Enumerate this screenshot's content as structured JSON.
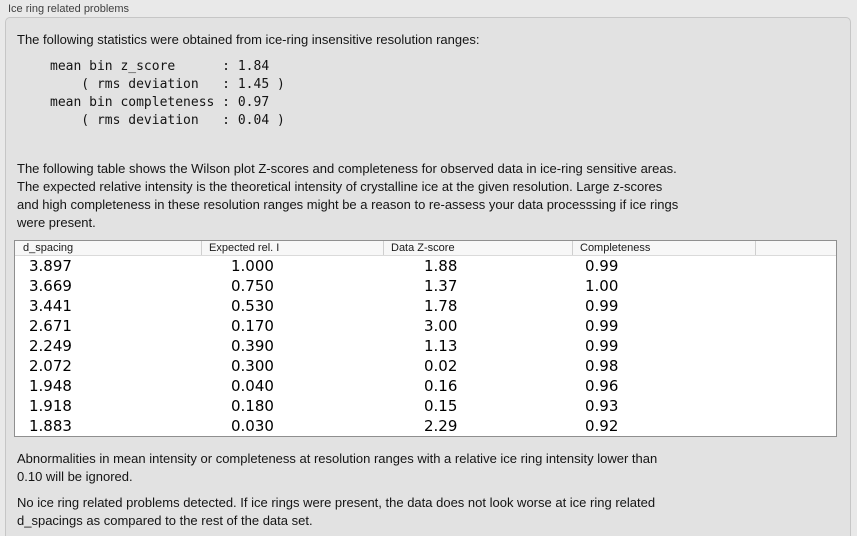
{
  "panel_title": "Ice ring related problems",
  "intro": "The following statistics were obtained from ice-ring insensitive resolution ranges:",
  "stats_text": "mean bin z_score      : 1.84\n    ( rms deviation   : 1.45 )\nmean bin completeness : 0.97\n    ( rms deviation   : 0.04 )",
  "stats": {
    "mean_bin_z_score": "1.84",
    "z_score_rms_deviation": "1.45",
    "mean_bin_completeness": "0.97",
    "completeness_rms_deviation": "0.04"
  },
  "description": "The following table shows the Wilson plot Z-scores and completeness for observed data in ice-ring sensitive areas.\nThe expected relative intensity is the theoretical intensity of crystalline ice at the given resolution. Large z-scores\nand high completeness in these resolution ranges might be a reason to re-assess your data processsing if ice rings\nwere present.",
  "table": {
    "headers": [
      "d_spacing",
      "Expected rel. I",
      "Data Z-score",
      "Completeness",
      ""
    ],
    "rows": [
      [
        "3.897",
        "1.000",
        "1.88",
        "0.99"
      ],
      [
        "3.669",
        "0.750",
        "1.37",
        "1.00"
      ],
      [
        "3.441",
        "0.530",
        "1.78",
        "0.99"
      ],
      [
        "2.671",
        "0.170",
        "3.00",
        "0.99"
      ],
      [
        "2.249",
        "0.390",
        "1.13",
        "0.99"
      ],
      [
        "2.072",
        "0.300",
        "0.02",
        "0.98"
      ],
      [
        "1.948",
        "0.040",
        "0.16",
        "0.96"
      ],
      [
        "1.918",
        "0.180",
        "0.15",
        "0.93"
      ],
      [
        "1.883",
        "0.030",
        "2.29",
        "0.92"
      ]
    ]
  },
  "ignore_note": "Abnormalities in mean intensity or completeness at resolution ranges with a relative ice ring intensity lower than\n0.10 will be ignored.",
  "conclusion": "No ice ring related problems detected. If ice rings were present, the data does not look worse at ice ring related\nd_spacings as compared to the rest of the data set.",
  "colors": {
    "page_bg": "#e9e9e9",
    "box_bg": "#e2e2e2",
    "box_border": "#c6c6c6",
    "table_border": "#8f8f8f",
    "table_header_bg": "#f7f7f7",
    "text": "#141414"
  }
}
